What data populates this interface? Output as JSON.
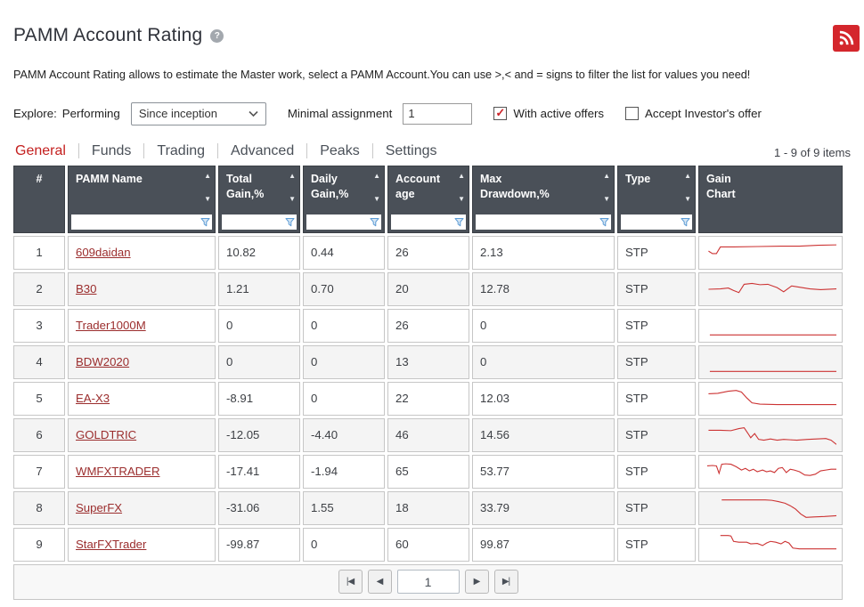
{
  "page": {
    "title": "PAMM Account Rating",
    "help_glyph": "?",
    "description": "PAMM Account Rating allows to estimate the Master work, select a PAMM Account.You can use >,< and = signs to filter the list for values you need!"
  },
  "controls": {
    "explore_label": "Explore:",
    "performing_label": "Performing",
    "performing_value": "Since inception",
    "minimal_assignment_label": "Minimal assignment",
    "minimal_assignment_value": "1",
    "check_glyph": "✓",
    "checkboxes": [
      {
        "label": "With active offers",
        "checked": true
      },
      {
        "label": "Accept Investor's offer",
        "checked": false
      }
    ]
  },
  "tabs": [
    {
      "label": "General",
      "active": true
    },
    {
      "label": "Funds",
      "active": false
    },
    {
      "label": "Trading",
      "active": false
    },
    {
      "label": "Advanced",
      "active": false
    },
    {
      "label": "Peaks",
      "active": false
    },
    {
      "label": "Settings",
      "active": false
    }
  ],
  "items_count": "1 - 9 of 9 items",
  "table": {
    "sort_asc_glyph": "▲",
    "sort_desc_glyph": "▼",
    "columns": [
      {
        "key": "index",
        "label_lines": [
          "#"
        ],
        "sortable": false,
        "filterable": false
      },
      {
        "key": "name",
        "label_lines": [
          "PAMM Name"
        ],
        "sortable": true,
        "filterable": true
      },
      {
        "key": "total_gain",
        "label_lines": [
          "Total",
          "Gain,%"
        ],
        "sortable": true,
        "filterable": true
      },
      {
        "key": "daily_gain",
        "label_lines": [
          "Daily",
          "Gain,%"
        ],
        "sortable": true,
        "filterable": true
      },
      {
        "key": "account_age",
        "label_lines": [
          "Account",
          "age"
        ],
        "sortable": true,
        "filterable": true
      },
      {
        "key": "max_drawdown",
        "label_lines": [
          "Max",
          "Drawdown,%"
        ],
        "sortable": true,
        "filterable": true
      },
      {
        "key": "type",
        "label_lines": [
          "Type"
        ],
        "sortable": true,
        "filterable": true
      },
      {
        "key": "chart",
        "label_lines": [
          "Gain",
          "Chart"
        ],
        "sortable": false,
        "filterable": false
      }
    ],
    "rows": [
      {
        "num": "1",
        "name": "609daidan",
        "total_gain": "10.82",
        "daily_gain": "0.44",
        "account_age": "26",
        "max_drawdown": "2.13",
        "type": "STP",
        "spark": [
          [
            3,
            13
          ],
          [
            6,
            16
          ],
          [
            9,
            16
          ],
          [
            12,
            8
          ],
          [
            22,
            8
          ],
          [
            40,
            7.5
          ],
          [
            58,
            7
          ],
          [
            72,
            7
          ],
          [
            86,
            6
          ],
          [
            100,
            5.5
          ]
        ]
      },
      {
        "num": "2",
        "name": "B30",
        "total_gain": "1.21",
        "daily_gain": "0.70",
        "account_age": "20",
        "max_drawdown": "12.78",
        "type": "STP",
        "spark": [
          [
            3,
            15
          ],
          [
            12,
            14.5
          ],
          [
            18,
            13.5
          ],
          [
            22,
            16.5
          ],
          [
            26,
            19
          ],
          [
            30,
            9
          ],
          [
            36,
            8
          ],
          [
            42,
            9.5
          ],
          [
            48,
            9
          ],
          [
            55,
            13
          ],
          [
            60,
            18
          ],
          [
            66,
            11
          ],
          [
            72,
            12.5
          ],
          [
            80,
            14.5
          ],
          [
            88,
            15.5
          ],
          [
            100,
            14.5
          ]
        ]
      },
      {
        "num": "3",
        "name": "Trader1000M",
        "total_gain": "0",
        "daily_gain": "0",
        "account_age": "26",
        "max_drawdown": "0",
        "type": "STP",
        "spark": [
          [
            4,
            26
          ],
          [
            100,
            26
          ]
        ]
      },
      {
        "num": "4",
        "name": "BDW2020",
        "total_gain": "0",
        "daily_gain": "0",
        "account_age": "13",
        "max_drawdown": "0",
        "type": "STP",
        "spark": [
          [
            4,
            26
          ],
          [
            100,
            26
          ]
        ]
      },
      {
        "num": "5",
        "name": "EA-X3",
        "total_gain": "-8.91",
        "daily_gain": "0",
        "account_age": "22",
        "max_drawdown": "12.03",
        "type": "STP",
        "spark": [
          [
            3,
            9
          ],
          [
            10,
            8.5
          ],
          [
            18,
            6
          ],
          [
            24,
            5
          ],
          [
            28,
            7
          ],
          [
            32,
            14
          ],
          [
            36,
            20
          ],
          [
            42,
            21.5
          ],
          [
            55,
            22
          ],
          [
            100,
            22
          ]
        ]
      },
      {
        "num": "6",
        "name": "GOLDTRIC",
        "total_gain": "-12.05",
        "daily_gain": "-4.40",
        "account_age": "46",
        "max_drawdown": "14.56",
        "type": "STP",
        "spark": [
          [
            3,
            9
          ],
          [
            12,
            9
          ],
          [
            20,
            9.5
          ],
          [
            26,
            7
          ],
          [
            30,
            6
          ],
          [
            33,
            13
          ],
          [
            35,
            18
          ],
          [
            38,
            13
          ],
          [
            41,
            20
          ],
          [
            45,
            21
          ],
          [
            50,
            19.5
          ],
          [
            55,
            21
          ],
          [
            60,
            20
          ],
          [
            65,
            20.5
          ],
          [
            70,
            21
          ],
          [
            78,
            20
          ],
          [
            85,
            19.5
          ],
          [
            92,
            19
          ],
          [
            96,
            21
          ],
          [
            100,
            26
          ]
        ]
      },
      {
        "num": "7",
        "name": "WMFXTRADER",
        "total_gain": "-17.41",
        "daily_gain": "-1.94",
        "account_age": "65",
        "max_drawdown": "53.77",
        "type": "STP",
        "spark": [
          [
            2,
            8
          ],
          [
            6,
            7.5
          ],
          [
            9,
            8
          ],
          [
            11,
            17
          ],
          [
            13,
            6
          ],
          [
            16,
            5.5
          ],
          [
            20,
            6
          ],
          [
            24,
            9
          ],
          [
            28,
            13
          ],
          [
            31,
            11
          ],
          [
            34,
            14
          ],
          [
            37,
            12
          ],
          [
            40,
            15
          ],
          [
            44,
            13
          ],
          [
            47,
            15
          ],
          [
            50,
            14
          ],
          [
            53,
            16
          ],
          [
            56,
            11
          ],
          [
            59,
            10
          ],
          [
            62,
            16
          ],
          [
            65,
            12
          ],
          [
            68,
            13
          ],
          [
            72,
            15
          ],
          [
            76,
            19
          ],
          [
            80,
            19.5
          ],
          [
            84,
            18
          ],
          [
            88,
            14
          ],
          [
            92,
            13
          ],
          [
            96,
            12
          ],
          [
            100,
            12
          ]
        ]
      },
      {
        "num": "8",
        "name": "SuperFX",
        "total_gain": "-31.06",
        "daily_gain": "1.55",
        "account_age": "18",
        "max_drawdown": "33.79",
        "type": "STP",
        "spark": [
          [
            13,
            5
          ],
          [
            30,
            5
          ],
          [
            46,
            5
          ],
          [
            51,
            5.5
          ],
          [
            56,
            7
          ],
          [
            61,
            9
          ],
          [
            65,
            12
          ],
          [
            69,
            16
          ],
          [
            73,
            22
          ],
          [
            77,
            26
          ],
          [
            83,
            25.5
          ],
          [
            91,
            25
          ],
          [
            100,
            24
          ]
        ]
      },
      {
        "num": "9",
        "name": "StarFXTrader",
        "total_gain": "-99.87",
        "daily_gain": "0",
        "account_age": "60",
        "max_drawdown": "99.87",
        "type": "STP",
        "spark": [
          [
            12,
            4
          ],
          [
            18,
            4
          ],
          [
            20,
            4.5
          ],
          [
            22,
            11
          ],
          [
            26,
            12
          ],
          [
            32,
            12
          ],
          [
            35,
            14
          ],
          [
            40,
            13.5
          ],
          [
            44,
            16
          ],
          [
            47,
            13
          ],
          [
            50,
            11
          ],
          [
            54,
            12
          ],
          [
            58,
            14
          ],
          [
            61,
            11
          ],
          [
            64,
            13
          ],
          [
            67,
            19
          ],
          [
            72,
            20
          ],
          [
            80,
            20
          ],
          [
            90,
            20
          ],
          [
            100,
            20
          ]
        ]
      }
    ]
  },
  "pagination": {
    "first_label": "|◀",
    "prev_label": "◀",
    "page_value": "1",
    "next_label": "▶",
    "last_label": "▶|"
  },
  "colors": {
    "accent_red": "#c4201f",
    "link_red": "#9b2d2d",
    "header_bg": "#4a5058",
    "spark_line": "#cc3333",
    "filter_icon_blue": "#5b9bd5",
    "rss_bg": "#d4262c"
  }
}
